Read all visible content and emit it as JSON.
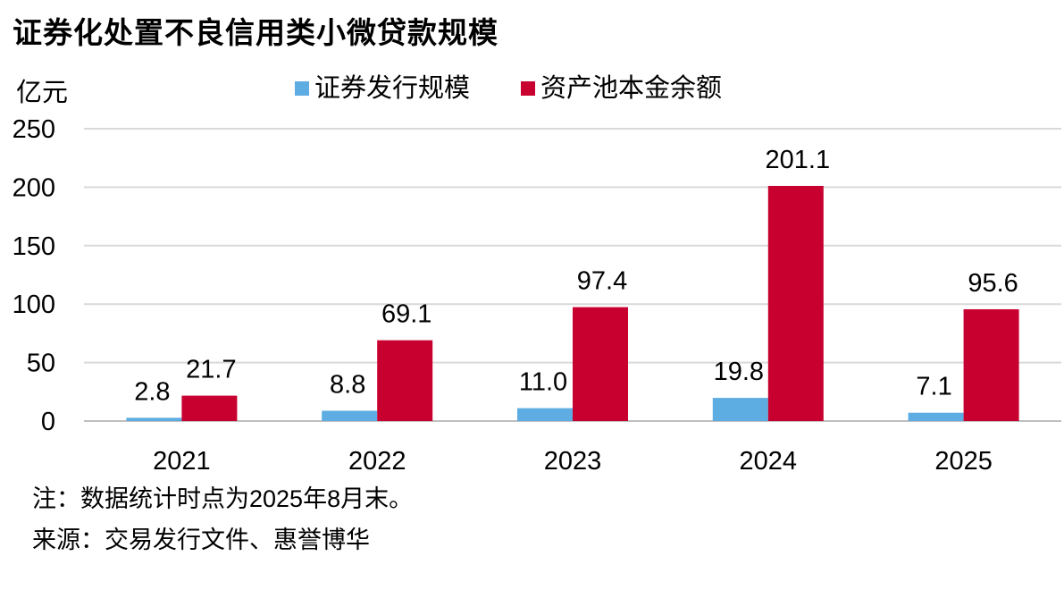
{
  "title": "证券化处置不良信用类小微贷款规模",
  "unit": "亿元",
  "note": "注：数据统计时点为2025年8月末。",
  "source": "来源：交易发行文件、惠誉博华",
  "colors": {
    "issuance": "#5dade2",
    "pool": "#c8002f",
    "grid": "#d9d9d9",
    "axis": "#bfbfbf"
  },
  "chart_data": {
    "type": "bar",
    "title": "证券化处置不良信用类小微贷款规模",
    "ylabel": "亿元",
    "xlabel": "",
    "categories": [
      "2021",
      "2022",
      "2023",
      "2024",
      "2025"
    ],
    "ylim": [
      0,
      250
    ],
    "yticks": [
      "0",
      "50",
      "100",
      "150",
      "200",
      "250"
    ],
    "grid": true,
    "legend": "top-center",
    "series": [
      {
        "name": "证券发行规模",
        "values": [
          2.8,
          8.8,
          11.0,
          19.8,
          7.1
        ],
        "labels": [
          "2.8",
          "8.8",
          "11.0",
          "19.8",
          "7.1"
        ]
      },
      {
        "name": "资产池本金余额",
        "values": [
          21.7,
          69.1,
          97.4,
          201.1,
          95.6
        ],
        "labels": [
          "21.7",
          "69.1",
          "97.4",
          "201.1",
          "95.6"
        ]
      }
    ]
  }
}
